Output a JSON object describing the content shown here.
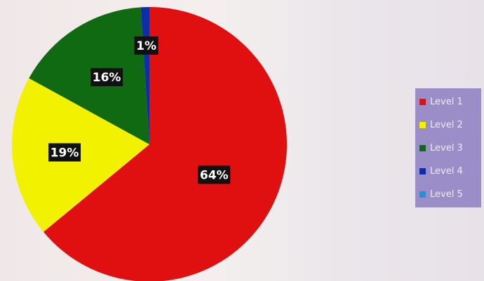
{
  "chart_data": {
    "type": "pie",
    "categories": [
      "Level 1",
      "Level 2",
      "Level 3",
      "Level 4",
      "Level 5"
    ],
    "values": [
      64,
      19,
      16,
      1,
      0
    ],
    "data_labels": [
      "64%",
      "19%",
      "16%",
      "1%",
      ""
    ],
    "colors": [
      "#e01010",
      "#f2f200",
      "#0f6a12",
      "#0e2ea8",
      "#2b8fd6"
    ],
    "title": "",
    "legend_position": "right",
    "start_angle_deg": 0,
    "direction": "clockwise"
  },
  "legend": {
    "items": [
      {
        "label": "Level 1",
        "color": "#e01010"
      },
      {
        "label": "Level 2",
        "color": "#f2f200"
      },
      {
        "label": "Level 3",
        "color": "#0f6a12"
      },
      {
        "label": "Level 4",
        "color": "#0e2ea8"
      },
      {
        "label": "Level 5",
        "color": "#2b8fd6"
      }
    ]
  }
}
